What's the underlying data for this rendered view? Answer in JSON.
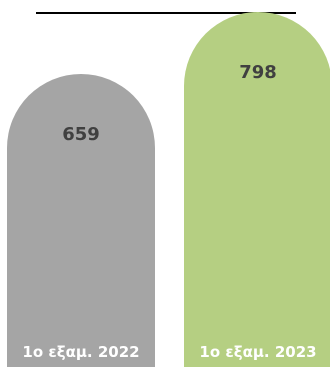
{
  "chart_data": {
    "type": "bar",
    "categories": [
      "1ο εξαμ. 2022",
      "1ο εξαμ. 2023"
    ],
    "values": [
      659,
      798
    ],
    "colors": [
      "#a5a5a5",
      "#b5cf82"
    ],
    "ylim": [
      0,
      800
    ],
    "grid": false,
    "legend": "none"
  }
}
